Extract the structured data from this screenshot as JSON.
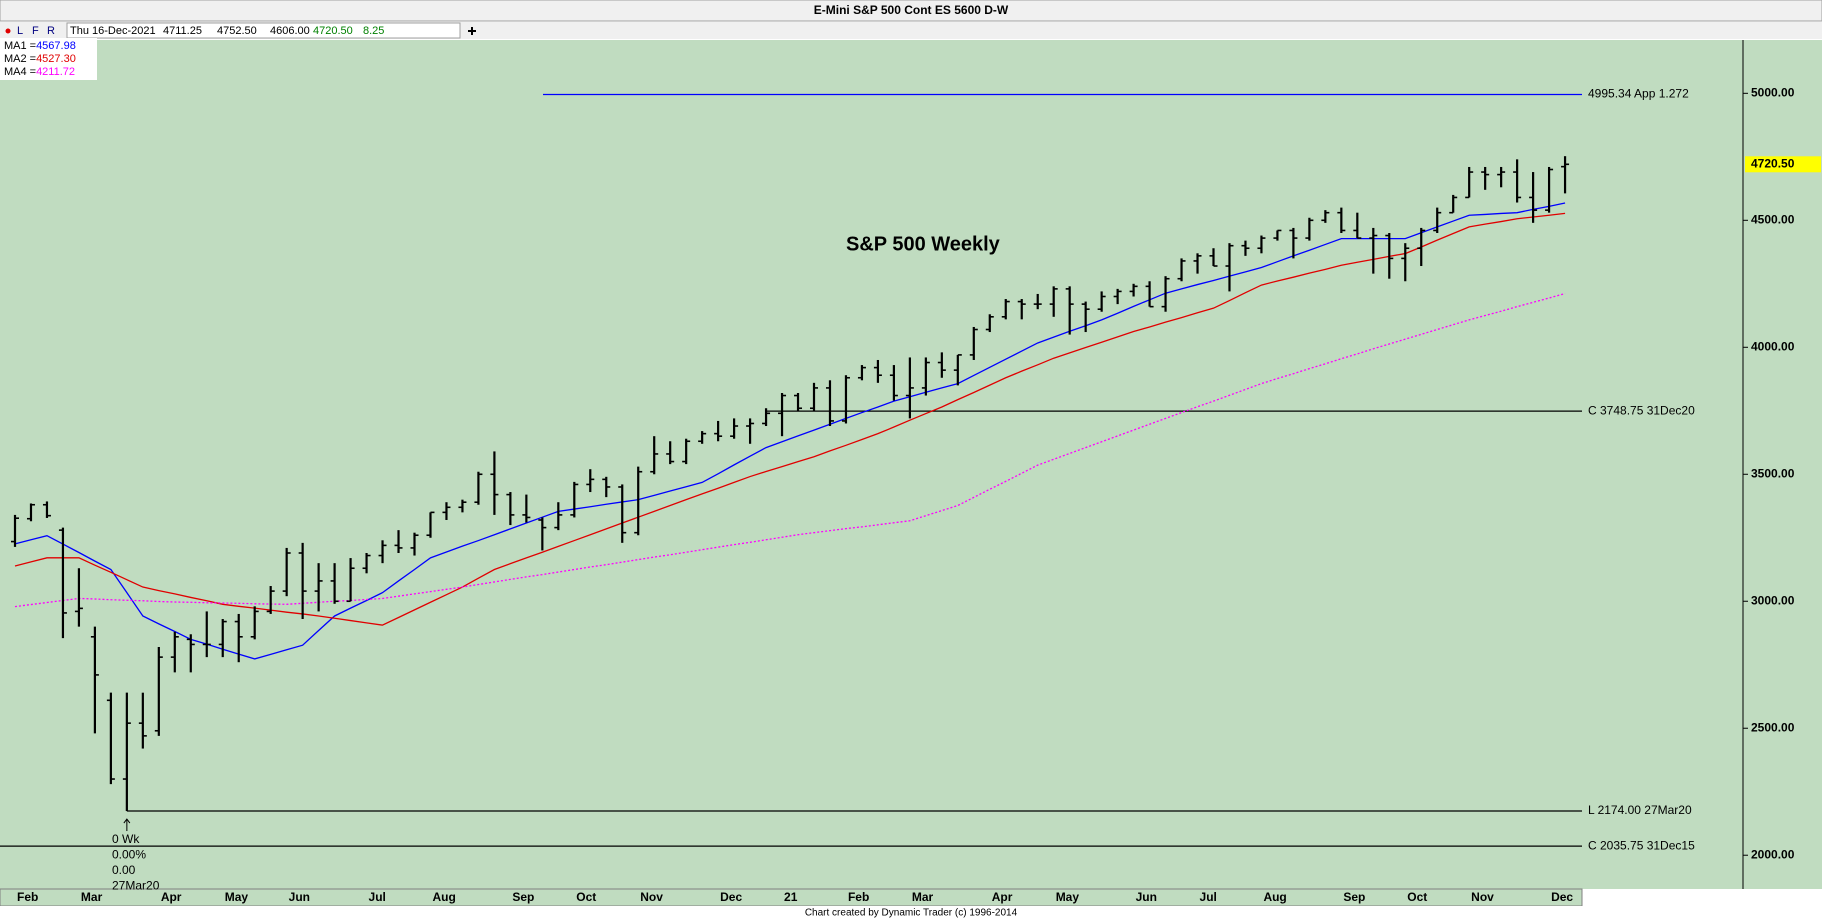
{
  "header": {
    "title": "E-Mini S&P 500 Cont ES 5600 D-W",
    "buttons": [
      "L",
      "F",
      "R"
    ],
    "date": "Thu 16-Dec-2021",
    "open": "4711.25",
    "high": "4752.50",
    "low": "4606.00",
    "close": "4720.50",
    "change": "8.25"
  },
  "footer": "Chart created by Dynamic Trader  (c) 1996-2014",
  "chart_data": {
    "type": "ohlc",
    "title": "S&P 500 Weekly",
    "categories": [
      "Feb",
      null,
      null,
      null,
      "Mar",
      null,
      null,
      null,
      null,
      "Apr",
      null,
      null,
      null,
      "May",
      null,
      null,
      null,
      "Jun",
      null,
      null,
      null,
      null,
      "Jul",
      null,
      null,
      null,
      "Aug",
      null,
      null,
      null,
      null,
      "Sep",
      null,
      null,
      null,
      "Oct",
      null,
      null,
      null,
      "Nov",
      null,
      null,
      null,
      null,
      "Dec",
      null,
      null,
      null,
      "21",
      null,
      null,
      null,
      "Feb",
      null,
      null,
      null,
      "Mar",
      null,
      null,
      null,
      null,
      "Apr",
      null,
      null,
      null,
      "May",
      null,
      null,
      null,
      null,
      "Jun",
      null,
      null,
      null,
      "Jul",
      null,
      null,
      null,
      "Aug",
      null,
      null,
      null,
      null,
      "Sep",
      null,
      null,
      null,
      "Oct",
      null,
      null,
      null,
      "Nov",
      null,
      null,
      null,
      null,
      "Dec",
      null
    ],
    "ohlc": {
      "color": "#000000",
      "open": [
        3235,
        3325,
        3380,
        3280,
        2960,
        2860,
        2610,
        2300,
        2520,
        2490,
        2780,
        2850,
        2830,
        2830,
        2920,
        2860,
        2960,
        3040,
        3190,
        3040,
        3080,
        3000,
        3130,
        3180,
        3220,
        3210,
        3260,
        3350,
        3370,
        3390,
        3500,
        3420,
        3340,
        3320,
        3290,
        3340,
        3460,
        3480,
        3450,
        3270,
        3510,
        3580,
        3550,
        3630,
        3660,
        3650,
        3690,
        3700,
        3740,
        3810,
        3760,
        3840,
        3710,
        3880,
        3920,
        3890,
        3810,
        3840,
        3940,
        3910,
        3970,
        4070,
        4120,
        4180,
        4170,
        4170,
        4230,
        4170,
        4150,
        4200,
        4220,
        4240,
        4160,
        4270,
        4340,
        4360,
        4320,
        4400,
        4390,
        4430,
        4460,
        4430,
        4500,
        4530,
        4460,
        4430,
        4440,
        4350,
        4390,
        4460,
        4530,
        4590,
        4690,
        4680,
        4690,
        4590,
        4540,
        4711.25
      ],
      "high": [
        3340,
        3385,
        3393,
        3290,
        3130,
        2900,
        2640,
        2640,
        2640,
        2820,
        2880,
        2870,
        2960,
        2930,
        2950,
        2980,
        3060,
        3210,
        3230,
        3150,
        3150,
        3170,
        3190,
        3240,
        3280,
        3270,
        3350,
        3390,
        3400,
        3510,
        3590,
        3430,
        3420,
        3330,
        3390,
        3470,
        3520,
        3490,
        3460,
        3530,
        3650,
        3630,
        3640,
        3670,
        3710,
        3720,
        3720,
        3760,
        3820,
        3820,
        3860,
        3870,
        3890,
        3930,
        3950,
        3930,
        3960,
        3960,
        3980,
        3970,
        4080,
        4130,
        4190,
        4190,
        4210,
        4240,
        4240,
        4180,
        4220,
        4230,
        4250,
        4260,
        4280,
        4350,
        4370,
        4390,
        4410,
        4420,
        4440,
        4460,
        4470,
        4510,
        4540,
        4550,
        4530,
        4470,
        4450,
        4410,
        4470,
        4550,
        4600,
        4710,
        4710,
        4710,
        4740,
        4690,
        4710,
        4752.5
      ],
      "low": [
        3214,
        3315,
        3328,
        2855,
        2900,
        2480,
        2280,
        2174,
        2420,
        2470,
        2720,
        2720,
        2780,
        2780,
        2760,
        2850,
        2950,
        3020,
        2930,
        2960,
        2990,
        3000,
        3110,
        3150,
        3190,
        3180,
        3250,
        3320,
        3350,
        3380,
        3340,
        3300,
        3310,
        3200,
        3280,
        3330,
        3430,
        3410,
        3230,
        3260,
        3500,
        3540,
        3540,
        3620,
        3630,
        3640,
        3620,
        3690,
        3650,
        3750,
        3750,
        3690,
        3700,
        3870,
        3860,
        3790,
        3720,
        3810,
        3880,
        3850,
        3950,
        4060,
        4110,
        4110,
        4150,
        4120,
        4050,
        4060,
        4140,
        4170,
        4200,
        4160,
        4140,
        4260,
        4290,
        4320,
        4220,
        4360,
        4370,
        4420,
        4350,
        4420,
        4490,
        4450,
        4430,
        4290,
        4270,
        4260,
        4320,
        4450,
        4530,
        4590,
        4620,
        4630,
        4570,
        4490,
        4530,
        4606
      ],
      "close": [
        3327,
        3380,
        3337,
        2954,
        2972,
        2710,
        2300,
        2520,
        2470,
        2780,
        2860,
        2830,
        2830,
        2920,
        2860,
        2960,
        3040,
        3190,
        3040,
        3080,
        3000,
        3130,
        3180,
        3220,
        3210,
        3260,
        3350,
        3370,
        3390,
        3500,
        3420,
        3340,
        3330,
        3290,
        3340,
        3460,
        3480,
        3450,
        3270,
        3510,
        3580,
        3550,
        3630,
        3660,
        3650,
        3690,
        3700,
        3740,
        3810,
        3760,
        3840,
        3710,
        3880,
        3920,
        3890,
        3810,
        3840,
        3940,
        3910,
        3970,
        4070,
        4120,
        4180,
        4170,
        4170,
        4230,
        4170,
        4150,
        4200,
        4220,
        4240,
        4160,
        4270,
        4340,
        4360,
        4320,
        4400,
        4390,
        4430,
        4460,
        4430,
        4500,
        4530,
        4460,
        4430,
        4440,
        4350,
        4390,
        4460,
        4530,
        4590,
        4690,
        4680,
        4690,
        4590,
        4540,
        4700,
        4720.5
      ]
    },
    "legend_separator": "=",
    "series": [
      {
        "name": "MA1",
        "color": "#0000ff",
        "dash": false,
        "readout": "4567.98",
        "values": [
          3226,
          3242,
          3258,
          3225,
          3192,
          3158,
          3125,
          3034,
          2942,
          2911,
          2881,
          2850,
          2831,
          2811,
          2792,
          2773,
          2791,
          2809,
          2827,
          2885,
          2942,
          2973,
          3003,
          3034,
          3080,
          3125,
          3171,
          3194,
          3217,
          3239,
          3262,
          3285,
          3308,
          3331,
          3354,
          3363,
          3372,
          3382,
          3391,
          3400,
          3417,
          3434,
          3451,
          3468,
          3502,
          3537,
          3571,
          3605,
          3628,
          3651,
          3674,
          3697,
          3720,
          3743,
          3765,
          3788,
          3805,
          3823,
          3840,
          3857,
          3889,
          3921,
          3953,
          3985,
          4017,
          4040,
          4063,
          4085,
          4108,
          4134,
          4161,
          4187,
          4213,
          4230,
          4247,
          4263,
          4280,
          4297,
          4314,
          4337,
          4360,
          4382,
          4405,
          4428,
          4428,
          4428,
          4428,
          4428,
          4451,
          4474,
          4497,
          4520,
          4523,
          4527,
          4530,
          4543,
          4555,
          4567.98
        ]
      },
      {
        "name": "MA2",
        "color": "#e00000",
        "dash": false,
        "readout": "4527.30",
        "values": [
          3139,
          3155,
          3171,
          3171,
          3171,
          3142,
          3114,
          3085,
          3056,
          3042,
          3029,
          3015,
          3002,
          2988,
          2980,
          2973,
          2965,
          2957,
          2950,
          2942,
          2933,
          2924,
          2915,
          2906,
          2936,
          2966,
          2996,
          3026,
          3056,
          3091,
          3125,
          3148,
          3171,
          3193,
          3216,
          3239,
          3262,
          3285,
          3308,
          3331,
          3354,
          3377,
          3400,
          3423,
          3445,
          3468,
          3491,
          3511,
          3530,
          3550,
          3569,
          3592,
          3614,
          3637,
          3660,
          3686,
          3713,
          3739,
          3765,
          3794,
          3822,
          3851,
          3880,
          3906,
          3931,
          3957,
          3978,
          3999,
          4020,
          4041,
          4062,
          4080,
          4099,
          4117,
          4136,
          4154,
          4184,
          4215,
          4245,
          4261,
          4276,
          4292,
          4307,
          4323,
          4335,
          4346,
          4358,
          4369,
          4395,
          4422,
          4448,
          4474,
          4485,
          4495,
          4506,
          4513,
          4520,
          4527.3
        ]
      },
      {
        "name": "MA4",
        "color": "#ff00ff",
        "dash": true,
        "readout": "4211.72",
        "values": [
          2979,
          2987,
          2995,
          3003,
          3011,
          3009,
          3006,
          3004,
          3002,
          2999,
          2997,
          2996,
          2994,
          2993,
          2992,
          2990,
          2989,
          2988,
          2992,
          2996,
          3000,
          3003,
          3007,
          3011,
          3020,
          3029,
          3038,
          3047,
          3056,
          3066,
          3076,
          3086,
          3096,
          3105,
          3115,
          3125,
          3135,
          3144,
          3154,
          3164,
          3174,
          3183,
          3193,
          3203,
          3213,
          3223,
          3232,
          3242,
          3252,
          3262,
          3270,
          3278,
          3286,
          3293,
          3301,
          3309,
          3317,
          3337,
          3357,
          3377,
          3409,
          3441,
          3472,
          3504,
          3536,
          3559,
          3582,
          3605,
          3628,
          3651,
          3674,
          3697,
          3720,
          3743,
          3766,
          3788,
          3811,
          3834,
          3857,
          3877,
          3896,
          3916,
          3935,
          3955,
          3974,
          3994,
          4013,
          4032,
          4051,
          4070,
          4089,
          4108,
          4125,
          4142,
          4160,
          4177,
          4194,
          4211.72
        ]
      }
    ],
    "ylim": [
      1867,
      5206
    ],
    "yticks": [
      {
        "value": 2000,
        "label": "2000.00"
      },
      {
        "value": 2500,
        "label": "2500.00"
      },
      {
        "value": 3000,
        "label": "3000.00"
      },
      {
        "value": 3500,
        "label": "3500.00"
      },
      {
        "value": 4000,
        "label": "4000.00"
      },
      {
        "value": 4500,
        "label": "4500.00"
      },
      {
        "value": 5000,
        "label": "5000.00"
      }
    ],
    "annotations": [
      {
        "value": 4995.34,
        "label": "4995.34 App 1.272",
        "color": "#0000ff"
      },
      {
        "value": 3748.75,
        "label": "C 3748.75 31Dec20",
        "color": "#000000"
      },
      {
        "value": 2174,
        "label": "L 2174.00 27Mar20",
        "color": "#000000"
      },
      {
        "value": 2035.75,
        "label": "C 2035.75 31Dec15",
        "color": "#000000"
      }
    ],
    "pivot_labels": [
      "0 Wk",
      "0.00%",
      "0.00",
      "27Mar20"
    ],
    "last_price": {
      "value": 4720.5,
      "label": "4720.50",
      "color": "#ffff00"
    }
  }
}
